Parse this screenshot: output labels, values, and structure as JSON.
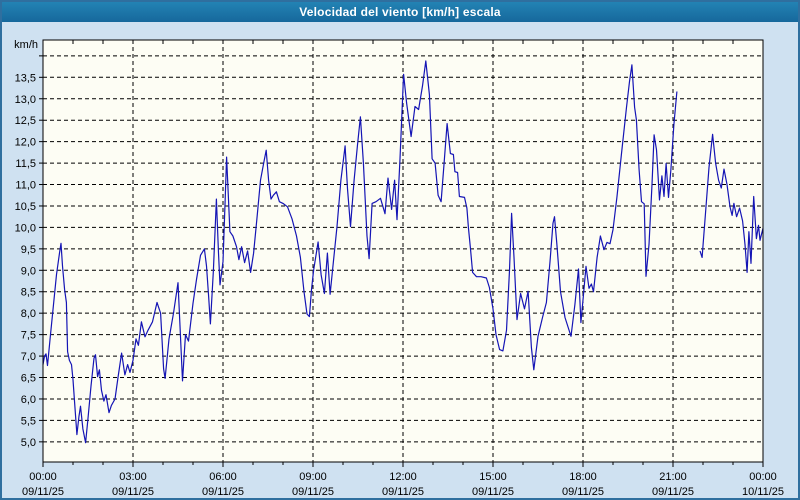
{
  "window": {
    "title": "Velocidad del viento [km/h] escala"
  },
  "chart_data": {
    "type": "line",
    "title": "Velocidad del viento [km/h] escala",
    "xlabel": "",
    "ylabel": "km/h",
    "ylim": [
      4.53,
      14.37
    ],
    "xlim_hours": [
      0,
      24
    ],
    "grid": "dashed",
    "legend": "none",
    "line_color": "#1515b5",
    "plot_bg": "#fdfdf4",
    "y_gridline_step": 0.5,
    "y_ticks": [
      {
        "value": 13.5,
        "label": "13,5"
      },
      {
        "value": 13.0,
        "label": "13,0"
      },
      {
        "value": 12.5,
        "label": "12,5"
      },
      {
        "value": 12.0,
        "label": "12,0"
      },
      {
        "value": 11.5,
        "label": "11,5"
      },
      {
        "value": 11.0,
        "label": "11,0"
      },
      {
        "value": 10.5,
        "label": "10,5"
      },
      {
        "value": 10.0,
        "label": "10,0"
      },
      {
        "value": 9.5,
        "label": "9,5"
      },
      {
        "value": 9.0,
        "label": "9,0"
      },
      {
        "value": 8.5,
        "label": "8,5"
      },
      {
        "value": 8.0,
        "label": "8,0"
      },
      {
        "value": 7.5,
        "label": "7,5"
      },
      {
        "value": 7.0,
        "label": "7,0"
      },
      {
        "value": 6.5,
        "label": "6,5"
      },
      {
        "value": 6.0,
        "label": "6,0"
      },
      {
        "value": 5.5,
        "label": "5,5"
      },
      {
        "value": 5.0,
        "label": "5,0"
      }
    ],
    "x_ticks": [
      {
        "t": 0,
        "time": "00:00",
        "date": "09/11/25"
      },
      {
        "t": 3,
        "time": "03:00",
        "date": "09/11/25"
      },
      {
        "t": 6,
        "time": "06:00",
        "date": "09/11/25"
      },
      {
        "t": 9,
        "time": "09:00",
        "date": "09/11/25"
      },
      {
        "t": 12,
        "time": "12:00",
        "date": "09/11/25"
      },
      {
        "t": 15,
        "time": "15:00",
        "date": "09/11/25"
      },
      {
        "t": 18,
        "time": "18:00",
        "date": "09/11/25"
      },
      {
        "t": 21,
        "time": "21:00",
        "date": "09/11/25"
      },
      {
        "t": 24,
        "time": "00:00",
        "date": "10/11/25"
      }
    ],
    "series": [
      {
        "name": "Velocidad del viento",
        "units": "km/h",
        "segments": [
          [
            [
              0.0,
              6.8
            ],
            [
              0.05,
              7.0
            ],
            [
              0.1,
              7.05
            ],
            [
              0.15,
              6.78
            ],
            [
              0.25,
              7.5
            ],
            [
              0.35,
              8.2
            ],
            [
              0.45,
              8.9
            ],
            [
              0.55,
              9.4
            ],
            [
              0.6,
              9.63
            ],
            [
              0.65,
              9.1
            ],
            [
              0.72,
              8.55
            ],
            [
              0.78,
              8.25
            ],
            [
              0.82,
              7.1
            ],
            [
              0.88,
              6.9
            ],
            [
              0.95,
              6.8
            ],
            [
              1.0,
              6.45
            ],
            [
              1.05,
              5.95
            ],
            [
              1.13,
              5.17
            ],
            [
              1.2,
              5.6
            ],
            [
              1.25,
              5.83
            ],
            [
              1.33,
              5.3
            ],
            [
              1.42,
              4.98
            ],
            [
              1.5,
              5.55
            ],
            [
              1.6,
              6.3
            ],
            [
              1.7,
              6.95
            ],
            [
              1.75,
              7.03
            ],
            [
              1.82,
              6.52
            ],
            [
              1.88,
              6.68
            ],
            [
              1.95,
              6.2
            ],
            [
              2.03,
              5.95
            ],
            [
              2.1,
              6.1
            ],
            [
              2.2,
              5.68
            ],
            [
              2.28,
              5.85
            ],
            [
              2.4,
              6.0
            ],
            [
              2.5,
              6.5
            ],
            [
              2.62,
              7.07
            ],
            [
              2.73,
              6.56
            ],
            [
              2.82,
              6.8
            ],
            [
              2.9,
              6.62
            ],
            [
              3.0,
              6.9
            ],
            [
              3.1,
              7.4
            ],
            [
              3.18,
              7.25
            ],
            [
              3.28,
              7.8
            ],
            [
              3.4,
              7.45
            ],
            [
              3.5,
              7.6
            ],
            [
              3.65,
              7.8
            ],
            [
              3.8,
              8.25
            ],
            [
              3.92,
              8.0
            ],
            [
              4.02,
              6.7
            ],
            [
              4.07,
              6.48
            ],
            [
              4.2,
              7.4
            ],
            [
              4.35,
              8.0
            ],
            [
              4.5,
              8.71
            ],
            [
              4.58,
              7.5
            ],
            [
              4.65,
              6.42
            ],
            [
              4.75,
              7.5
            ],
            [
              4.85,
              7.35
            ],
            [
              5.0,
              8.23
            ],
            [
              5.12,
              8.8
            ],
            [
              5.25,
              9.35
            ],
            [
              5.38,
              9.5
            ],
            [
              5.45,
              9.1
            ],
            [
              5.52,
              8.4
            ],
            [
              5.58,
              7.75
            ],
            [
              5.68,
              9.0
            ],
            [
              5.78,
              10.66
            ],
            [
              5.85,
              9.4
            ],
            [
              5.9,
              8.66
            ],
            [
              6.0,
              9.2
            ],
            [
              6.07,
              10.6
            ],
            [
              6.12,
              11.64
            ],
            [
              6.18,
              10.7
            ],
            [
              6.23,
              9.9
            ],
            [
              6.33,
              9.8
            ],
            [
              6.45,
              9.55
            ],
            [
              6.53,
              9.25
            ],
            [
              6.62,
              9.55
            ],
            [
              6.72,
              9.18
            ],
            [
              6.82,
              9.45
            ],
            [
              6.92,
              8.95
            ],
            [
              7.02,
              9.4
            ],
            [
              7.13,
              10.2
            ],
            [
              7.25,
              11.1
            ],
            [
              7.37,
              11.55
            ],
            [
              7.44,
              11.8
            ],
            [
              7.52,
              11.1
            ],
            [
              7.6,
              10.66
            ],
            [
              7.68,
              10.75
            ],
            [
              7.78,
              10.83
            ],
            [
              7.88,
              10.6
            ],
            [
              8.0,
              10.56
            ],
            [
              8.15,
              10.48
            ],
            [
              8.3,
              10.2
            ],
            [
              8.45,
              9.8
            ],
            [
              8.58,
              9.3
            ],
            [
              8.7,
              8.5
            ],
            [
              8.8,
              7.98
            ],
            [
              8.88,
              7.92
            ],
            [
              8.95,
              8.55
            ],
            [
              9.02,
              9.0
            ],
            [
              9.17,
              9.66
            ],
            [
              9.27,
              8.9
            ],
            [
              9.38,
              8.46
            ],
            [
              9.48,
              9.4
            ],
            [
              9.57,
              8.44
            ],
            [
              9.68,
              9.2
            ],
            [
              9.8,
              10.02
            ],
            [
              9.93,
              11.1
            ],
            [
              10.07,
              11.9
            ],
            [
              10.15,
              10.9
            ],
            [
              10.25,
              10.02
            ],
            [
              10.37,
              11.1
            ],
            [
              10.48,
              11.9
            ],
            [
              10.58,
              12.58
            ],
            [
              10.68,
              11.5
            ],
            [
              10.8,
              9.8
            ],
            [
              10.87,
              9.27
            ],
            [
              10.97,
              10.56
            ],
            [
              11.1,
              10.6
            ],
            [
              11.25,
              10.68
            ],
            [
              11.4,
              10.32
            ],
            [
              11.5,
              11.15
            ],
            [
              11.62,
              10.42
            ],
            [
              11.72,
              11.1
            ],
            [
              11.8,
              10.18
            ],
            [
              11.9,
              11.6
            ],
            [
              12.02,
              13.57
            ],
            [
              12.12,
              12.9
            ],
            [
              12.27,
              12.12
            ],
            [
              12.4,
              12.82
            ],
            [
              12.52,
              12.75
            ],
            [
              12.65,
              13.3
            ],
            [
              12.76,
              13.88
            ],
            [
              12.88,
              13.1
            ],
            [
              12.97,
              11.6
            ],
            [
              13.07,
              11.5
            ],
            [
              13.17,
              10.75
            ],
            [
              13.27,
              10.6
            ],
            [
              13.37,
              11.5
            ],
            [
              13.47,
              12.42
            ],
            [
              13.58,
              11.72
            ],
            [
              13.68,
              11.7
            ],
            [
              13.73,
              11.3
            ],
            [
              13.82,
              11.28
            ],
            [
              13.88,
              10.72
            ],
            [
              14.05,
              10.7
            ],
            [
              14.13,
              10.45
            ],
            [
              14.18,
              10.0
            ],
            [
              14.25,
              9.5
            ],
            [
              14.32,
              8.95
            ],
            [
              14.45,
              8.85
            ],
            [
              14.6,
              8.85
            ],
            [
              14.78,
              8.82
            ],
            [
              14.88,
              8.6
            ],
            [
              15.0,
              8.1
            ],
            [
              15.1,
              7.5
            ],
            [
              15.22,
              7.15
            ],
            [
              15.33,
              7.12
            ],
            [
              15.45,
              7.6
            ],
            [
              15.55,
              9.0
            ],
            [
              15.62,
              10.33
            ],
            [
              15.7,
              9.3
            ],
            [
              15.8,
              7.85
            ],
            [
              15.92,
              8.46
            ],
            [
              16.05,
              8.1
            ],
            [
              16.17,
              8.51
            ],
            [
              16.28,
              7.2
            ],
            [
              16.36,
              6.68
            ],
            [
              16.5,
              7.46
            ],
            [
              16.65,
              7.9
            ],
            [
              16.78,
              8.25
            ],
            [
              16.9,
              9.2
            ],
            [
              17.0,
              10.1
            ],
            [
              17.05,
              10.25
            ],
            [
              17.13,
              9.6
            ],
            [
              17.25,
              8.5
            ],
            [
              17.4,
              7.9
            ],
            [
              17.6,
              7.46
            ],
            [
              17.73,
              8.2
            ],
            [
              17.85,
              9.03
            ],
            [
              17.93,
              7.78
            ],
            [
              18.0,
              8.31
            ],
            [
              18.1,
              9.09
            ],
            [
              18.2,
              8.58
            ],
            [
              18.28,
              8.68
            ],
            [
              18.35,
              8.5
            ],
            [
              18.47,
              9.3
            ],
            [
              18.58,
              9.8
            ],
            [
              18.7,
              9.48
            ],
            [
              18.8,
              9.65
            ],
            [
              18.9,
              9.62
            ],
            [
              19.0,
              9.95
            ],
            [
              19.13,
              10.7
            ],
            [
              19.28,
              11.7
            ],
            [
              19.45,
              12.8
            ],
            [
              19.55,
              13.4
            ],
            [
              19.63,
              13.79
            ],
            [
              19.72,
              12.8
            ],
            [
              19.78,
              12.51
            ],
            [
              19.87,
              11.34
            ],
            [
              19.95,
              10.6
            ],
            [
              20.04,
              10.55
            ],
            [
              20.1,
              8.86
            ],
            [
              20.2,
              9.6
            ],
            [
              20.3,
              11.0
            ],
            [
              20.37,
              12.16
            ],
            [
              20.45,
              11.81
            ],
            [
              20.55,
              10.64
            ],
            [
              20.63,
              11.2
            ],
            [
              20.7,
              10.72
            ],
            [
              20.77,
              11.49
            ],
            [
              20.85,
              10.7
            ],
            [
              20.93,
              11.35
            ],
            [
              21.03,
              12.4
            ],
            [
              21.13,
              13.17
            ]
          ],
          [
            [
              21.9,
              9.45
            ],
            [
              21.97,
              9.3
            ],
            [
              22.08,
              10.3
            ],
            [
              22.2,
              11.4
            ],
            [
              22.32,
              12.17
            ],
            [
              22.42,
              11.5
            ],
            [
              22.52,
              11.1
            ],
            [
              22.61,
              10.92
            ],
            [
              22.7,
              11.36
            ],
            [
              22.8,
              11.0
            ],
            [
              22.9,
              10.48
            ],
            [
              22.97,
              10.28
            ],
            [
              23.03,
              10.56
            ],
            [
              23.12,
              10.25
            ],
            [
              23.22,
              10.45
            ],
            [
              23.32,
              10.15
            ],
            [
              23.4,
              9.6
            ],
            [
              23.47,
              8.95
            ],
            [
              23.53,
              9.9
            ],
            [
              23.6,
              9.16
            ],
            [
              23.69,
              10.72
            ],
            [
              23.78,
              9.74
            ],
            [
              23.85,
              10.05
            ],
            [
              23.9,
              9.7
            ],
            [
              24.0,
              9.98
            ]
          ]
        ]
      }
    ]
  }
}
